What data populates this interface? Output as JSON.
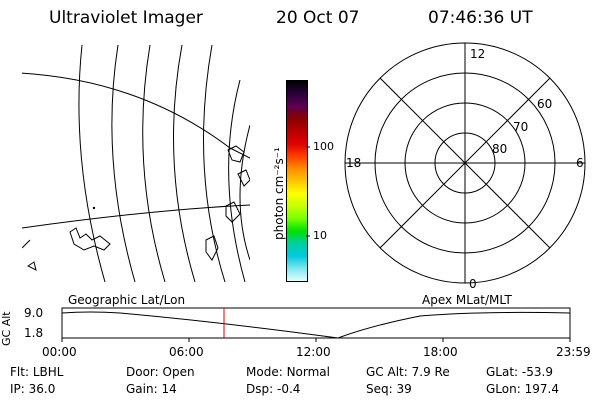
{
  "header": {
    "instrument": "Ultraviolet Imager",
    "date": "20 Oct 07",
    "time": "07:46:36 UT"
  },
  "colorbar": {
    "unit_label": "photon cm⁻²s⁻¹",
    "ticks": [
      "100",
      "10"
    ],
    "colors": [
      "#000000",
      "#2a003a",
      "#5a0050",
      "#8a0000",
      "#b80000",
      "#e00000",
      "#ff3c00",
      "#ff8c00",
      "#ffc400",
      "#ffff00",
      "#c8ff00",
      "#78ff00",
      "#00e000",
      "#00d0a0",
      "#00c8e0",
      "#80e8f0",
      "#e0ffff"
    ]
  },
  "geo_map": {
    "label": "Geographic Lat/Lon"
  },
  "polar_plot": {
    "label": "Apex MLat/MLT",
    "mlt_labels": {
      "top": "12",
      "left": "18",
      "right": "6",
      "bottom": "0"
    },
    "lat_labels": [
      "60",
      "70",
      "80"
    ]
  },
  "altitude_plot": {
    "ylabel": "GC Alt",
    "yticks": [
      "9.0",
      "1.8"
    ],
    "xticks": [
      "00:00",
      "06:00",
      "12:00",
      "18:00",
      "23:59"
    ],
    "marker_color": "#e00000"
  },
  "status": {
    "row1": [
      {
        "label": "Flt:",
        "value": "LBHL"
      },
      {
        "label": "Door:",
        "value": "Open"
      },
      {
        "label": "Mode:",
        "value": "Normal"
      },
      {
        "label": "GC Alt:",
        "value": "7.9 Re"
      },
      {
        "label": "GLat:",
        "value": "-53.9"
      }
    ],
    "row2": [
      {
        "label": "IP:",
        "value": "36.0"
      },
      {
        "label": "Gain:",
        "value": "14"
      },
      {
        "label": "Dsp:",
        "value": "-0.4"
      },
      {
        "label": "Seq:",
        "value": "39"
      },
      {
        "label": "GLon:",
        "value": "197.4"
      }
    ]
  }
}
